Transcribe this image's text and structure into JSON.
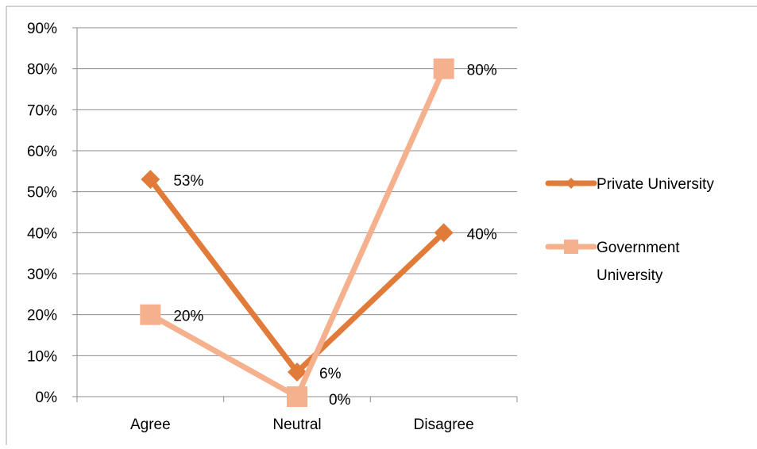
{
  "chart_data": {
    "type": "line",
    "categories": [
      "Agree",
      "Neutral",
      "Disagree"
    ],
    "y_unit": "%",
    "ylim": [
      0,
      90
    ],
    "y_ticks": [
      0,
      10,
      20,
      30,
      40,
      50,
      60,
      70,
      80,
      90
    ],
    "y_tick_labels": [
      "0%",
      "10%",
      "20%",
      "30%",
      "40%",
      "50%",
      "60%",
      "70%",
      "80%",
      "90%"
    ],
    "grid": true,
    "legend_position": "right",
    "title": "",
    "xlabel": "",
    "ylabel": "",
    "series": [
      {
        "name": "Private University",
        "legend_lines": [
          "Private University"
        ],
        "values": [
          53,
          6,
          40
        ],
        "data_labels": [
          "53%",
          "6%",
          "40%"
        ],
        "color": "#E07B39",
        "marker": "diamond"
      },
      {
        "name": "Government University",
        "legend_lines": [
          "Government",
          "University"
        ],
        "values": [
          20,
          0,
          80
        ],
        "data_labels": [
          "20%",
          "0%",
          "80%"
        ],
        "color": "#F5B08D",
        "marker": "square"
      }
    ]
  }
}
